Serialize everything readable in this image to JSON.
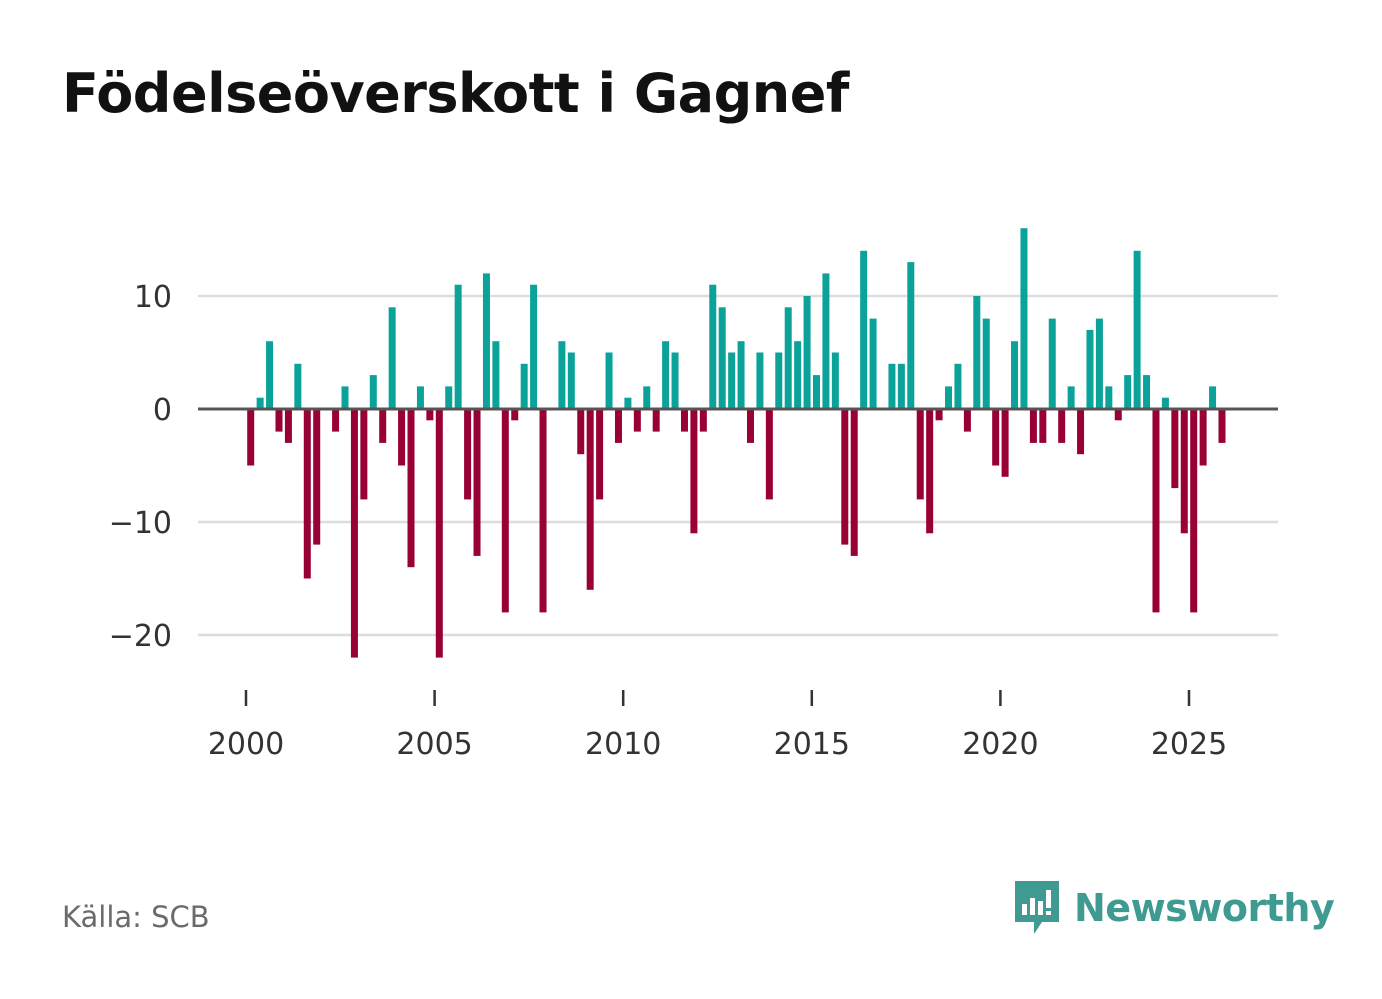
{
  "title": "Födelseöverskott i Gagnef",
  "source": "Källa: SCB",
  "brand": "Newsworthy",
  "colors": {
    "positive": "#0ba29a",
    "negative": "#990036",
    "grid": "#dddddd",
    "zero": "#555555",
    "brand": "#3f9b92"
  },
  "chart_data": {
    "type": "bar",
    "title": "Födelseöverskott i Gagnef",
    "xlabel": "",
    "ylabel": "",
    "ylim": [
      -25,
      17
    ],
    "yticks": [
      10,
      0,
      -10,
      -20
    ],
    "ytick_labels": [
      "10",
      "0",
      "−10",
      "−20"
    ],
    "xticks": [
      2000,
      2005,
      2010,
      2015,
      2020,
      2025
    ],
    "xtick_labels": [
      "2000",
      "2005",
      "2010",
      "2015",
      "2020",
      "2025"
    ],
    "x_start": 2000.0,
    "x_step": 0.25,
    "values": [
      -5,
      1,
      6,
      -2,
      -3,
      4,
      -15,
      -12,
      0,
      -2,
      2,
      -22,
      -8,
      3,
      -3,
      9,
      -5,
      -14,
      2,
      -1,
      -22,
      2,
      11,
      -8,
      -13,
      12,
      6,
      -18,
      -1,
      4,
      11,
      -18,
      0,
      6,
      5,
      -4,
      -16,
      -8,
      5,
      -3,
      1,
      -2,
      2,
      -2,
      6,
      5,
      -2,
      -11,
      -2,
      11,
      9,
      5,
      6,
      -3,
      5,
      -8,
      5,
      9,
      6,
      10,
      3,
      12,
      5,
      -12,
      -13,
      14,
      8,
      0,
      4,
      4,
      13,
      -8,
      -11,
      -1,
      2,
      4,
      -2,
      10,
      8,
      -5,
      -6,
      6,
      16,
      -3,
      -3,
      8,
      -3,
      2,
      -4,
      7,
      8,
      2,
      -1,
      3,
      14,
      3,
      -18,
      1,
      -7,
      -11,
      -18,
      -5,
      2,
      -3
    ]
  }
}
